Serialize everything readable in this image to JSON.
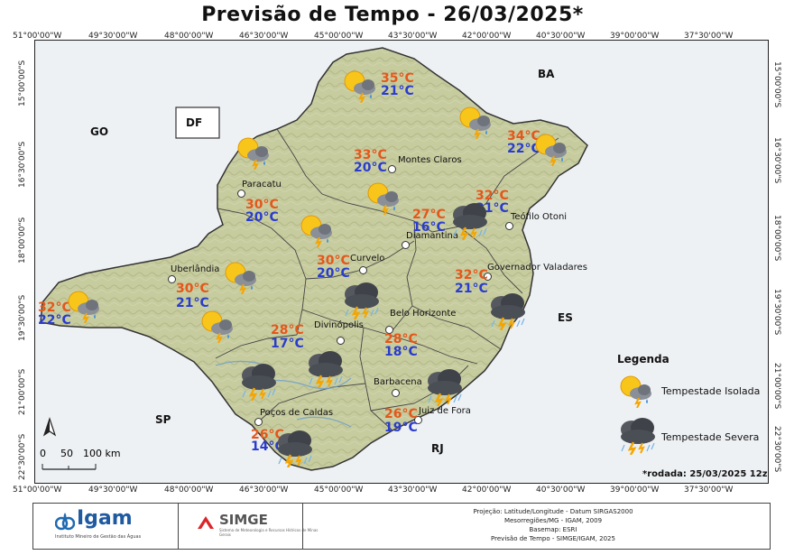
{
  "title": "Previsão de Tempo - 26/03/2025*",
  "coords": {
    "lon": [
      "51°00'00\"W",
      "49°30'00\"W",
      "48°00'00\"W",
      "46°30'00\"W",
      "45°00'00\"W",
      "43°30'00\"W",
      "42°00'00\"W",
      "40°30'00\"W",
      "39°00'00\"W",
      "37°30'00\"W"
    ],
    "lat": [
      "15°00'00\"S",
      "16°30'00\"S",
      "18°00'00\"S",
      "19°30'00\"S",
      "21°00'00\"S",
      "22°30'00\"S"
    ]
  },
  "states": [
    "GO",
    "DF",
    "BA",
    "ES",
    "SP",
    "RJ"
  ],
  "cities": [
    "Paracatu",
    "Montes Claros",
    "Teófilo Otoni",
    "Diamantina",
    "Curvelo",
    "Uberlândia",
    "Governador Valadares",
    "Divinópolis",
    "Belo Horizonte",
    "Barbacena",
    "Poços de Caldas",
    "Juiz de Fora"
  ],
  "forecast": [
    {
      "max": "35°C",
      "min": "21°C",
      "type": "isolada"
    },
    {
      "max": "34°C",
      "min": "22°C",
      "type": "isolada"
    },
    {
      "max": "33°C",
      "min": "20°C",
      "type": "isolada"
    },
    {
      "max": "30°C",
      "min": "20°C",
      "type": "isolada"
    },
    {
      "max": "32°C",
      "min": "21°C",
      "type": "severa"
    },
    {
      "max": "27°C",
      "min": "16°C",
      "type": "severa"
    },
    {
      "max": "30°C",
      "min": "20°C",
      "type": "isolada"
    },
    {
      "max": "30°C",
      "min": "21°C",
      "type": "isolada"
    },
    {
      "max": "32°C",
      "min": "21°C",
      "type": "severa"
    },
    {
      "max": "32°C",
      "min": "22°C",
      "type": "isolada"
    },
    {
      "max": "28°C",
      "min": "17°C",
      "type": "severa"
    },
    {
      "max": "28°C",
      "min": "18°C",
      "type": "severa"
    },
    {
      "max": "26°C",
      "min": "19°C",
      "type": "severa"
    },
    {
      "max": "26°C",
      "min": "14°C",
      "type": "severa"
    }
  ],
  "legend": {
    "title": "Legenda",
    "isolada": "Tempestade Isolada",
    "severa": "Tempestade Severa"
  },
  "scale": {
    "t0": "0",
    "t1": "50",
    "t2": "100 km"
  },
  "north": "N",
  "rodada": "*rodada: 25/03/2025 12z",
  "footer": {
    "igam": "Igam",
    "igam_sub": "Instituto Mineiro de Gestão das Águas",
    "simge": "SIMGE",
    "simge_sub": "Sistema de Meteorologia e Recursos Hídricos de Minas Gerais",
    "credits": [
      "Projeção: Latitude/Longitude - Datum SIRGAS2000",
      "Mesorregiões/MG - IGAM, 2009",
      "Basemap: ESRI",
      "Previsão de Tempo - SIMGE/IGAM, 2025"
    ]
  },
  "colors": {
    "tmax": "#e4571b",
    "tmin": "#2a3ccc",
    "relief": "#c9cfa2",
    "outside": "#eef1f4"
  }
}
